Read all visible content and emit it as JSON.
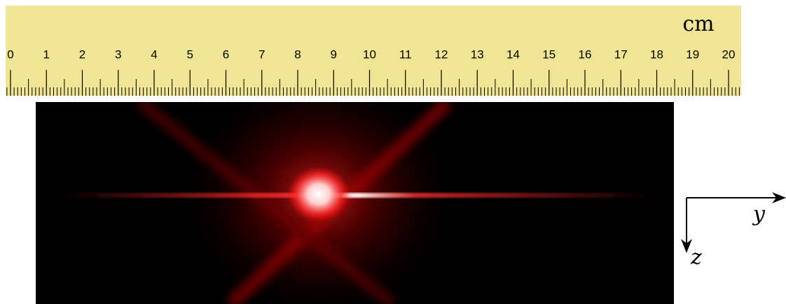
{
  "ruler": {
    "unit": "cm",
    "labels": [
      0,
      1,
      2,
      3,
      4,
      5,
      6,
      7,
      8,
      9,
      10,
      11,
      12,
      13,
      14,
      15,
      16,
      17,
      18,
      19,
      20
    ]
  },
  "axes": {
    "horizontal": "y",
    "vertical": "z"
  }
}
